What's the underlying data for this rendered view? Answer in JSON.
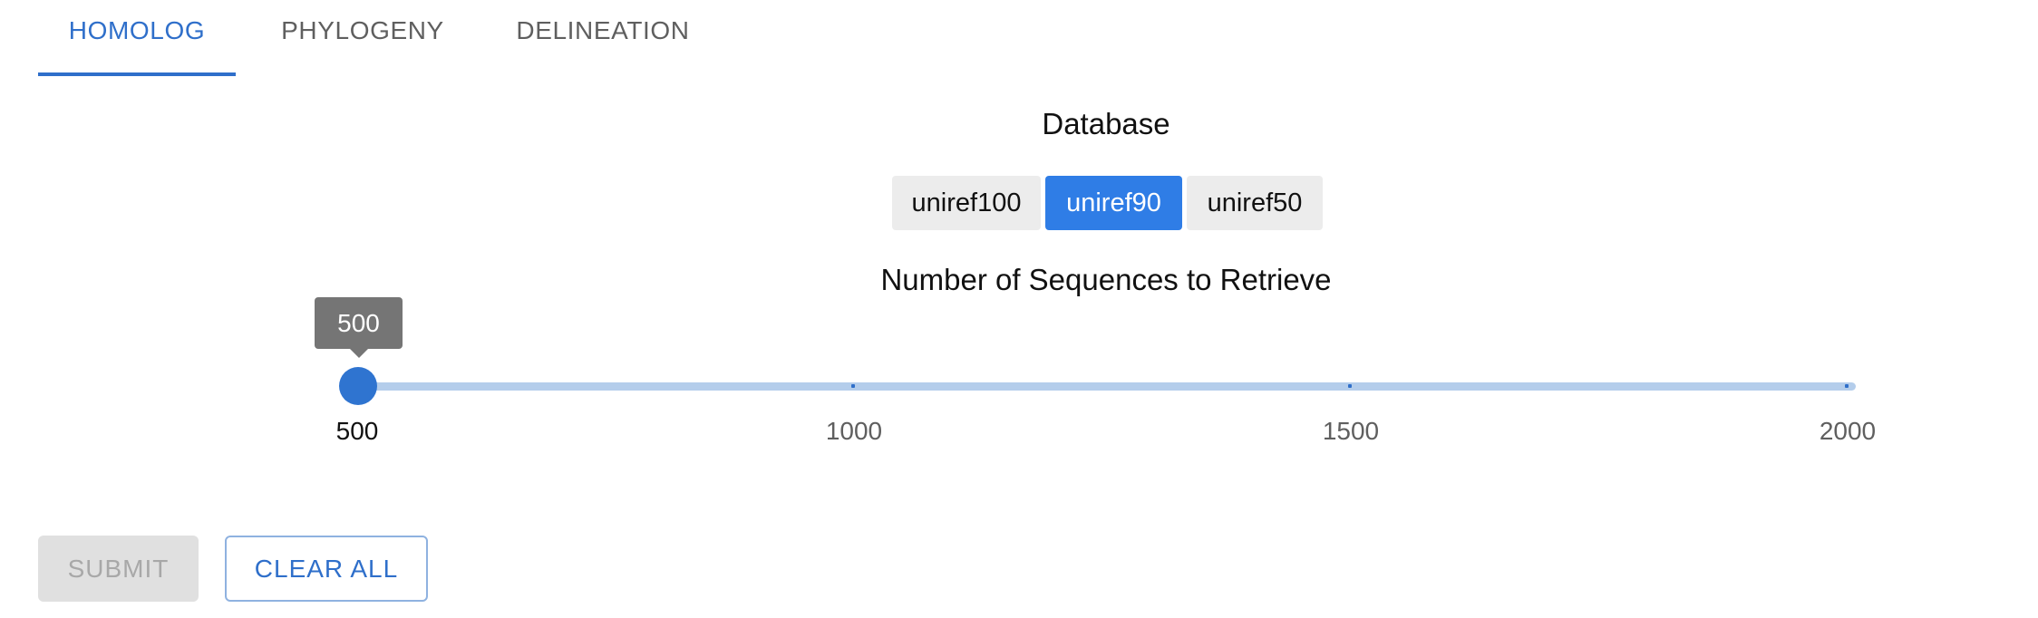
{
  "tabs": [
    {
      "label": "HOMOLOG",
      "active": true
    },
    {
      "label": "PHYLOGENY",
      "active": false
    },
    {
      "label": "DELINEATION",
      "active": false
    }
  ],
  "database": {
    "label": "Database",
    "options": [
      "uniref100",
      "uniref90",
      "uniref50"
    ],
    "selected": "uniref90"
  },
  "slider": {
    "title": "Number of Sequences to Retrieve",
    "value": 500,
    "value_label": "500",
    "min": 500,
    "max": 2000,
    "marks": [
      "500",
      "1000",
      "1500",
      "2000"
    ]
  },
  "actions": {
    "submit_label": "SUBMIT",
    "submit_disabled": true,
    "clear_label": "CLEAR ALL"
  },
  "colors": {
    "accent": "#2f6fca",
    "selected_button": "#2f7de6",
    "track": "#b4cdeb",
    "tooltip": "#757575"
  }
}
